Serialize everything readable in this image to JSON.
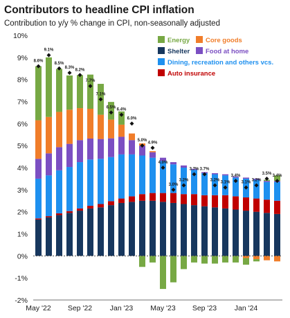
{
  "chart_data": {
    "type": "bar",
    "title": "Contributors to headline CPI inflation",
    "subtitle": "Contribution to y/y % change in CPI, non-seasonally adjusted",
    "y_tick_labels": [
      "-2%",
      "-1%",
      "0%",
      "1%",
      "2%",
      "3%",
      "4%",
      "5%",
      "6%",
      "7%",
      "8%",
      "9%",
      "10%"
    ],
    "x_tick_labels": [
      "May '22",
      "Sep '22",
      "Jan '23",
      "May '23",
      "Sep '23",
      "Jan '24"
    ],
    "ylim": [
      -2,
      10
    ],
    "grid": false,
    "legend_position": "top-right",
    "categories": [
      "May 2022",
      "Jun 2022",
      "Jul 2022",
      "Aug 2022",
      "Sep 2022",
      "Oct 2022",
      "Nov 2022",
      "Dec 2022",
      "Jan 2023",
      "Feb 2023",
      "Mar 2023",
      "Apr 2023",
      "May 2023",
      "Jun 2023",
      "Jul 2023",
      "Aug 2023",
      "Sep 2023",
      "Oct 2023",
      "Nov 2023",
      "Dec 2023",
      "Jan 2024",
      "Feb 2024",
      "Mar 2024",
      "Apr 2024"
    ],
    "series": [
      {
        "name": "Shelter",
        "color": "#17375e",
        "values": [
          1.65,
          1.75,
          1.85,
          1.95,
          2.05,
          2.15,
          2.2,
          2.3,
          2.4,
          2.45,
          2.5,
          2.5,
          2.45,
          2.4,
          2.35,
          2.3,
          2.25,
          2.2,
          2.15,
          2.1,
          2.05,
          2.0,
          1.95,
          1.9
        ]
      },
      {
        "name": "Auto insurance",
        "color": "#c00000",
        "values": [
          0.05,
          0.05,
          0.08,
          0.08,
          0.1,
          0.12,
          0.15,
          0.18,
          0.2,
          0.25,
          0.3,
          0.35,
          0.4,
          0.45,
          0.45,
          0.5,
          0.5,
          0.55,
          0.6,
          0.6,
          0.6,
          0.6,
          0.6,
          0.6
        ]
      },
      {
        "name": "Dining, recreation and others vcs.",
        "color": "#1e90ef",
        "values": [
          1.8,
          1.85,
          1.95,
          2.0,
          2.1,
          2.1,
          2.05,
          2.0,
          2.0,
          1.9,
          1.75,
          1.6,
          1.45,
          1.3,
          1.2,
          1.1,
          1.0,
          0.95,
          0.9,
          0.85,
          0.85,
          0.85,
          0.8,
          0.85
        ]
      },
      {
        "name": "Food at home",
        "color": "#7b4fc2",
        "values": [
          0.9,
          1.0,
          1.05,
          1.05,
          1.0,
          0.95,
          0.9,
          0.85,
          0.8,
          0.65,
          0.45,
          0.25,
          0.15,
          0.1,
          0.1,
          0.05,
          0.05,
          0.05,
          0.05,
          0.05,
          0.05,
          0.05,
          0.05,
          0.05
        ]
      },
      {
        "name": "Core goods",
        "color": "#f07d2a",
        "values": [
          1.75,
          1.65,
          1.6,
          1.55,
          1.45,
          1.35,
          1.1,
          0.85,
          0.55,
          0.3,
          0.1,
          0.05,
          0.0,
          0.0,
          0.0,
          0.0,
          0.0,
          0.0,
          0.0,
          0.0,
          -0.1,
          -0.15,
          -0.2,
          -0.25
        ]
      },
      {
        "name": "Energy",
        "color": "#77a844",
        "values": [
          2.45,
          2.7,
          1.95,
          1.55,
          1.5,
          1.55,
          1.4,
          0.8,
          0.6,
          0.0,
          -0.5,
          -0.3,
          -1.5,
          -1.2,
          -0.6,
          -0.3,
          -0.35,
          -0.35,
          -0.3,
          -0.3,
          -0.3,
          -0.1,
          0.05,
          0.25
        ]
      }
    ],
    "headline": [
      8.6,
      9.1,
      8.5,
      8.3,
      8.2,
      7.7,
      7.1,
      6.5,
      6.4,
      6.0,
      5.0,
      4.9,
      4.0,
      3.0,
      3.2,
      3.7,
      3.7,
      3.2,
      3.1,
      3.4,
      3.1,
      3.2,
      3.5,
      3.4
    ],
    "headline_labels": [
      "8.6%",
      "9.1%",
      "8.5%",
      "8.3%",
      "8.2%",
      "7.7%",
      "7.1%",
      "6.5%",
      "6.4%",
      "6.0%",
      "5.0%",
      "4.9%",
      "4.0%",
      "3.0%",
      "3.2%",
      "3.7%",
      "3.7%",
      "3.2%",
      "3.1%",
      "3.4%",
      "3.1%",
      "3.2%",
      "3.5%",
      "3.4%"
    ],
    "legend": [
      {
        "label": "Energy",
        "color": "#77a844"
      },
      {
        "label": "Core goods",
        "color": "#f07d2a"
      },
      {
        "label": "Shelter",
        "color": "#17375e"
      },
      {
        "label": "Food at home",
        "color": "#7b4fc2"
      },
      {
        "label": "Dining, recreation and others vcs.",
        "color": "#1e90ef"
      },
      {
        "label": "Auto insurance",
        "color": "#c00000"
      }
    ]
  }
}
